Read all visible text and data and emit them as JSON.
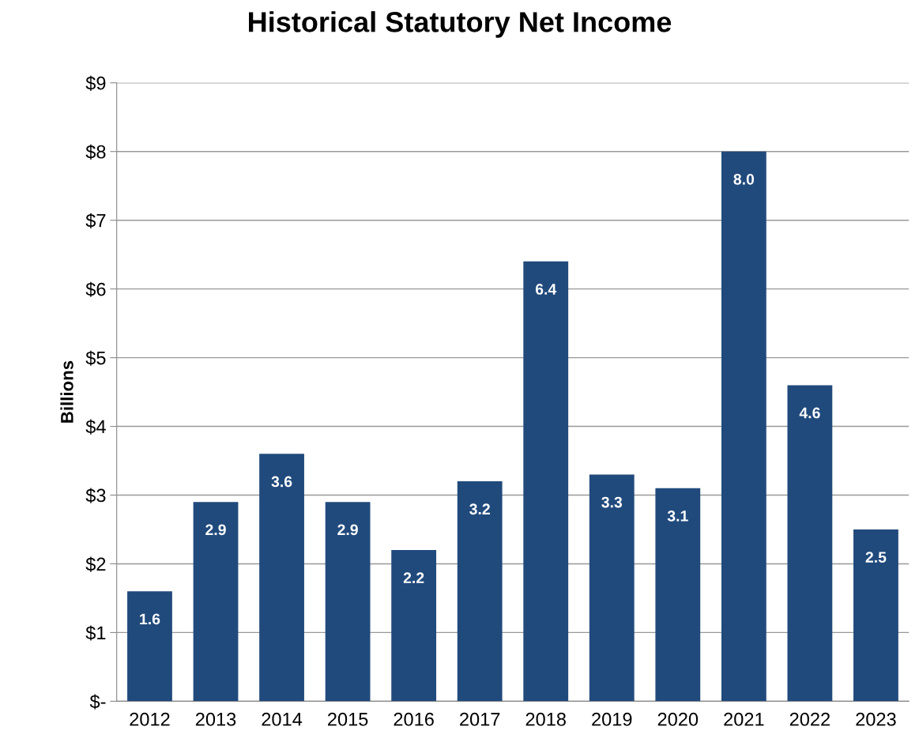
{
  "chart_data": {
    "type": "bar",
    "title": "Historical Statutory Net Income",
    "ylabel": "Billions",
    "categories": [
      "2012",
      "2013",
      "2014",
      "2015",
      "2016",
      "2017",
      "2018",
      "2019",
      "2020",
      "2021",
      "2022",
      "2023"
    ],
    "values": [
      1.6,
      2.9,
      3.6,
      2.9,
      2.2,
      3.2,
      6.4,
      3.3,
      3.1,
      8.0,
      4.6,
      2.5
    ],
    "color": "#214a7c",
    "ylim": [
      0,
      9
    ],
    "yticks": [
      {
        "value": 0,
        "label": "$-"
      },
      {
        "value": 1,
        "label": "$1"
      },
      {
        "value": 2,
        "label": "$2"
      },
      {
        "value": 3,
        "label": "$3"
      },
      {
        "value": 4,
        "label": "$4"
      },
      {
        "value": 5,
        "label": "$5"
      },
      {
        "value": 6,
        "label": "$6"
      },
      {
        "value": 7,
        "label": "$7"
      },
      {
        "value": 8,
        "label": "$8"
      },
      {
        "value": 9,
        "label": "$9"
      }
    ],
    "value_labels": [
      "1.6",
      "2.9",
      "3.6",
      "2.9",
      "2.2",
      "3.2",
      "6.4",
      "3.3",
      "3.1",
      "8.0",
      "4.6",
      "2.5"
    ],
    "grid": "y",
    "legend": false
  }
}
